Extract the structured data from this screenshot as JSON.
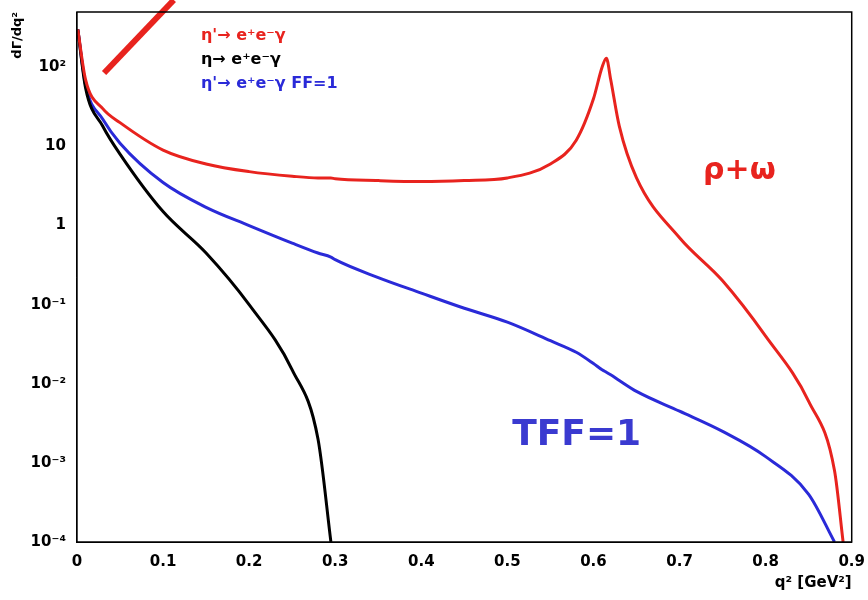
{
  "chart_data": {
    "type": "line",
    "x_label": "q² [GeV²]",
    "y_label": "dΓ/dq²",
    "log": "y",
    "grid": false,
    "legend": "top-left",
    "x": [
      0.001,
      0.01,
      0.03,
      0.05,
      0.1,
      0.15,
      0.2,
      0.25,
      0.28,
      0.295,
      0.3,
      0.35,
      0.4,
      0.45,
      0.5,
      0.55,
      0.58,
      0.6,
      0.61,
      0.615,
      0.62,
      0.63,
      0.65,
      0.7,
      0.75,
      0.8,
      0.85,
      0.88,
      0.89
    ],
    "series": [
      {
        "name": "η'→ e⁺e⁻γ",
        "color": "#e8231e",
        "values": [
          300,
          70,
          30,
          20,
          9,
          6,
          4.8,
          4.2,
          4.0,
          4.0,
          3.9,
          3.7,
          3.6,
          3.7,
          4.0,
          6.0,
          12,
          40,
          100,
          130,
          70,
          18,
          4,
          0.7,
          0.2,
          0.04,
          0.006,
          0.0008,
          0.0001
        ]
      },
      {
        "name": "η→ e⁺e⁻γ",
        "color": "#000000",
        "values": [
          300,
          55,
          18,
          8,
          1.5,
          0.45,
          0.1,
          0.015,
          0.002,
          0.0001,
          null,
          null,
          null,
          null,
          null,
          null,
          null,
          null,
          null,
          null,
          null,
          null,
          null,
          null,
          null,
          null,
          null,
          null,
          null
        ]
      },
      {
        "name": "η'→ e⁺e⁻γ FF=1",
        "color": "#2a2ad8",
        "values": [
          300,
          60,
          22,
          11,
          3.5,
          1.7,
          1.0,
          0.6,
          0.45,
          0.4,
          0.37,
          0.22,
          0.14,
          0.09,
          0.06,
          0.035,
          0.025,
          0.018,
          0.015,
          0.014,
          0.013,
          0.011,
          0.008,
          0.0045,
          0.0025,
          0.0012,
          0.0004,
          0.0001,
          null
        ]
      }
    ],
    "annotations": [
      {
        "text": "ρ+ω",
        "color": "#e8231e"
      },
      {
        "text": "TFF=1",
        "color": "#3a3ad0"
      }
    ],
    "xlim": [
      0,
      0.9
    ],
    "xticks": [
      0,
      0.1,
      0.2,
      0.3,
      0.4,
      0.5,
      0.6,
      0.7,
      0.8,
      0.9
    ],
    "ylim": [
      0.0001,
      500
    ],
    "yticks": [
      {
        "value": 0.0001,
        "label": "10⁻⁴"
      },
      {
        "value": 0.001,
        "label": "10⁻³"
      },
      {
        "value": 0.01,
        "label": "10⁻²"
      },
      {
        "value": 0.1,
        "label": "10⁻¹"
      },
      1,
      10,
      {
        "value": 100,
        "label": "10²"
      }
    ]
  }
}
